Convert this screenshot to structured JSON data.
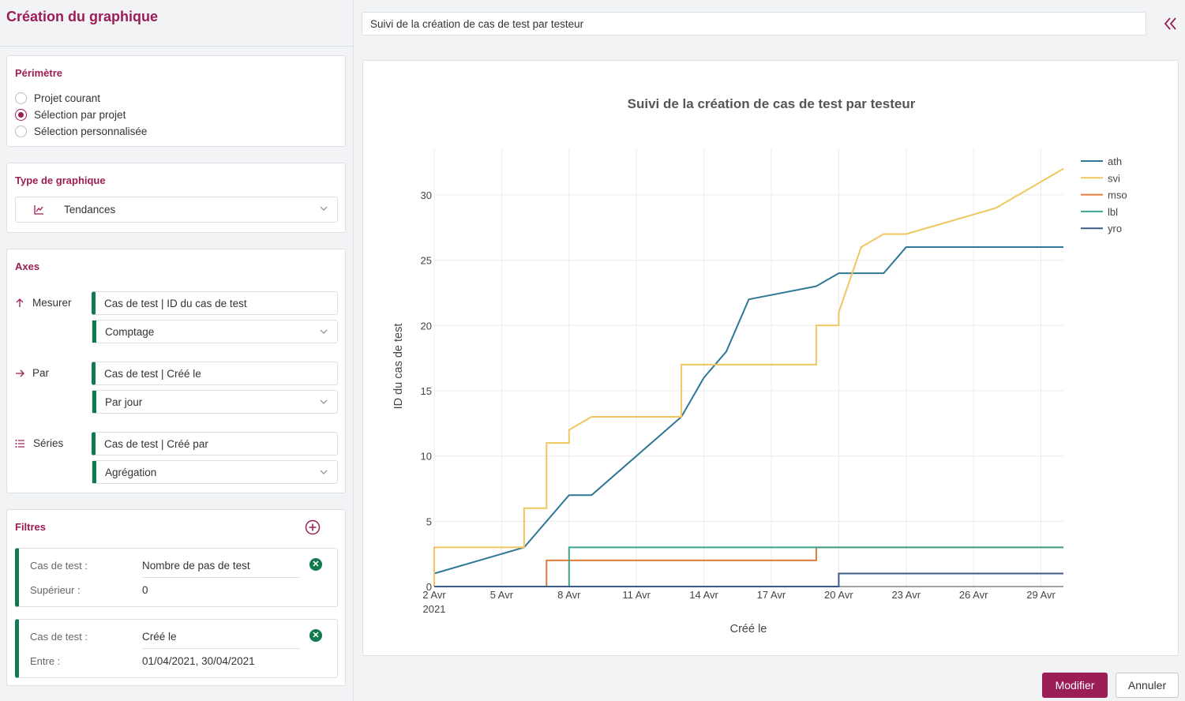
{
  "left_panel": {
    "title": "Création du graphique",
    "perimetre": {
      "title": "Périmètre",
      "options": [
        "Projet courant",
        "Sélection par projet",
        "Sélection personnalisée"
      ],
      "selected_index": 1
    },
    "type": {
      "title": "Type de graphique",
      "value": "Tendances",
      "icon": "trend-chart-icon"
    },
    "axes": {
      "title": "Axes",
      "measure": {
        "label": "Mesurer",
        "field": "Cas de test | ID du cas de test",
        "agg": "Comptage"
      },
      "by": {
        "label": "Par",
        "field": "Cas de test | Créé le",
        "agg": "Par jour"
      },
      "series": {
        "label": "Séries",
        "field": "Cas de test | Créé par",
        "agg": "Agrégation"
      }
    },
    "filters": {
      "title": "Filtres",
      "items": [
        {
          "key1": "Cas de test :",
          "val1": "Nombre de pas de test",
          "key2": "Supérieur :",
          "val2": "0"
        },
        {
          "key1": "Cas de test :",
          "val1": "Créé le",
          "key2": "Entre :",
          "val2": "01/04/2021, 30/04/2021"
        }
      ]
    }
  },
  "right_panel": {
    "title_input": "Suivi de la création de cas de test par testeur",
    "buttons": {
      "modify": "Modifier",
      "cancel": "Annuler"
    }
  },
  "colors": {
    "brand": "#9b1d56",
    "accent_green": "#107a4e"
  },
  "chart_data": {
    "type": "line",
    "title": "Suivi de la création de cas de test par testeur",
    "xlabel": "Créé le",
    "ylabel": "ID du cas de test",
    "x_ticks": [
      "2 Avr",
      "5 Avr",
      "8 Avr",
      "11 Avr",
      "14 Avr",
      "17 Avr",
      "20 Avr",
      "23 Avr",
      "26 Avr",
      "29 Avr"
    ],
    "x_year_label": "2021",
    "x_range": [
      2,
      30
    ],
    "y_ticks": [
      0,
      5,
      10,
      15,
      20,
      25,
      30
    ],
    "ylim": [
      0,
      33.5
    ],
    "grid": true,
    "legend_position": "top-right",
    "series": [
      {
        "name": "ath",
        "color": "#2e7796",
        "points": [
          [
            2,
            1
          ],
          [
            6,
            3
          ],
          [
            8,
            7
          ],
          [
            9,
            7
          ],
          [
            13,
            13
          ],
          [
            14,
            16
          ],
          [
            15,
            18
          ],
          [
            16,
            22
          ],
          [
            19,
            23
          ],
          [
            20,
            24
          ],
          [
            22,
            24
          ],
          [
            23,
            26
          ],
          [
            30,
            26
          ]
        ]
      },
      {
        "name": "svi",
        "color": "#f0c75e",
        "points": [
          [
            2,
            0
          ],
          [
            2,
            3
          ],
          [
            6,
            3
          ],
          [
            6,
            6
          ],
          [
            7,
            6
          ],
          [
            7,
            11
          ],
          [
            8,
            11
          ],
          [
            8,
            12
          ],
          [
            9,
            13
          ],
          [
            13,
            13
          ],
          [
            13,
            17
          ],
          [
            19,
            17
          ],
          [
            19,
            20
          ],
          [
            20,
            20
          ],
          [
            20,
            21
          ],
          [
            21,
            26
          ],
          [
            22,
            27
          ],
          [
            23,
            27
          ],
          [
            27,
            29
          ],
          [
            30,
            32
          ]
        ]
      },
      {
        "name": "mso",
        "color": "#e07b39",
        "points": [
          [
            7,
            0
          ],
          [
            7,
            2
          ],
          [
            19,
            2
          ],
          [
            19,
            3
          ],
          [
            30,
            3
          ]
        ]
      },
      {
        "name": "lbl",
        "color": "#3aa58e",
        "points": [
          [
            8,
            0
          ],
          [
            8,
            3
          ],
          [
            30,
            3
          ]
        ]
      },
      {
        "name": "yro",
        "color": "#3c5b86",
        "points": [
          [
            2,
            0
          ],
          [
            20,
            0
          ],
          [
            20,
            1
          ],
          [
            30,
            1
          ]
        ]
      }
    ]
  }
}
